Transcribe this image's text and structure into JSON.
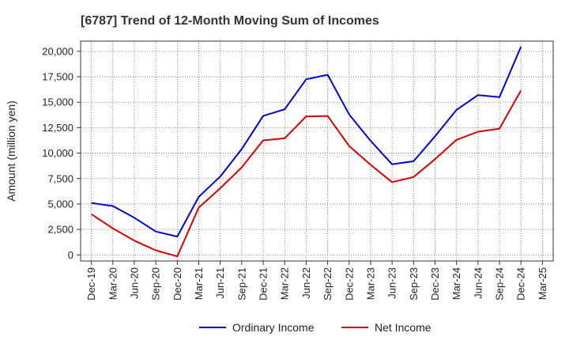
{
  "chart_data": {
    "type": "line",
    "title": "[6787]  Trend of 12-Month Moving Sum of Incomes",
    "xlabel": "",
    "ylabel": "Amount (million yen)",
    "ylim": [
      -600,
      21000
    ],
    "yticks": [
      0,
      2500,
      5000,
      7500,
      10000,
      12500,
      15000,
      17500,
      20000
    ],
    "ytick_labels": [
      "0",
      "2,500",
      "5,000",
      "7,500",
      "10,000",
      "12,500",
      "15,000",
      "17,500",
      "20,000"
    ],
    "categories": [
      "Dec-19",
      "Mar-20",
      "Jun-20",
      "Sep-20",
      "Dec-20",
      "Mar-21",
      "Jun-21",
      "Sep-21",
      "Dec-21",
      "Mar-22",
      "Jun-22",
      "Sep-22",
      "Dec-22",
      "Mar-23",
      "Jun-23",
      "Sep-23",
      "Dec-23",
      "Mar-24",
      "Jun-24",
      "Sep-24",
      "Dec-24",
      "Mar-25"
    ],
    "grid": true,
    "legend_position": "bottom",
    "series": [
      {
        "name": "Ordinary Income",
        "color": "#0000dd",
        "values": [
          5100,
          4800,
          3650,
          2300,
          1800,
          5700,
          7700,
          10400,
          13650,
          14300,
          17250,
          17700,
          13800,
          11200,
          8900,
          9200,
          11650,
          14250,
          15700,
          15500,
          20450,
          null
        ]
      },
      {
        "name": "Net Income",
        "color": "#dd0000",
        "values": [
          4000,
          2600,
          1400,
          450,
          -150,
          4650,
          6550,
          8600,
          11250,
          11450,
          13600,
          13650,
          10700,
          8850,
          7150,
          7650,
          9400,
          11300,
          12100,
          12400,
          16150,
          null
        ]
      }
    ]
  }
}
